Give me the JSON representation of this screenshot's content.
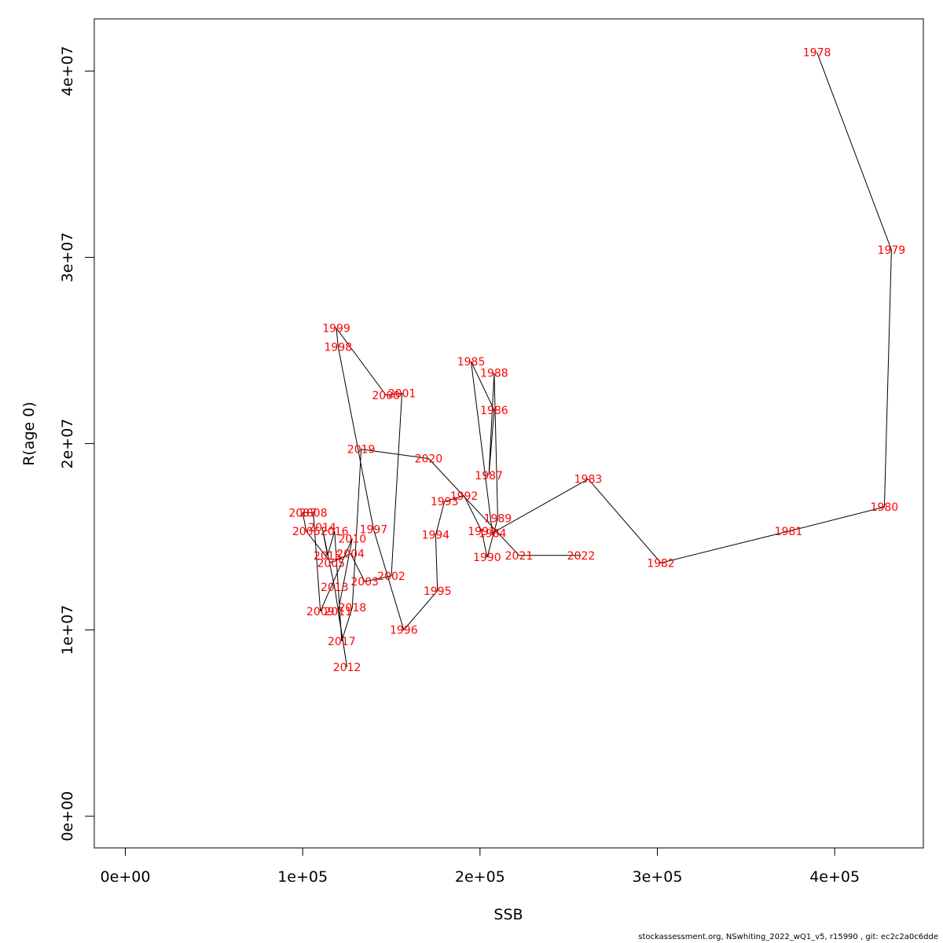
{
  "chart_data": {
    "type": "scatter",
    "connected": true,
    "title": "",
    "xlabel": "SSB",
    "ylabel": "R(age 0)",
    "xlim": [
      -17500,
      450000
    ],
    "ylim": [
      -1700000,
      42800000
    ],
    "x_ticks": [
      0,
      100000,
      200000,
      300000,
      400000
    ],
    "x_tick_labels": [
      "0e+00",
      "1e+05",
      "2e+05",
      "3e+05",
      "4e+05"
    ],
    "y_ticks": [
      0,
      10000000,
      20000000,
      30000000,
      40000000
    ],
    "y_tick_labels": [
      "0e+00",
      "1e+07",
      "2e+07",
      "3e+07",
      "4e+07"
    ],
    "grid": false,
    "line_color": "#000000",
    "label_color": "#ff0000",
    "points": [
      {
        "year": "1978",
        "ssb": 390000,
        "r": 41000000
      },
      {
        "year": "1979",
        "ssb": 432000,
        "r": 30400000
      },
      {
        "year": "1980",
        "ssb": 428000,
        "r": 16600000
      },
      {
        "year": "1981",
        "ssb": 374000,
        "r": 15300000
      },
      {
        "year": "1982",
        "ssb": 302000,
        "r": 13600000
      },
      {
        "year": "1983",
        "ssb": 261000,
        "r": 18100000
      },
      {
        "year": "1984",
        "ssb": 207000,
        "r": 15200000
      },
      {
        "year": "1985",
        "ssb": 195000,
        "r": 24400000
      },
      {
        "year": "1986",
        "ssb": 208000,
        "r": 21800000
      },
      {
        "year": "1987",
        "ssb": 205000,
        "r": 18300000
      },
      {
        "year": "1988",
        "ssb": 208000,
        "r": 23800000
      },
      {
        "year": "1989",
        "ssb": 210000,
        "r": 16000000
      },
      {
        "year": "1990",
        "ssb": 204000,
        "r": 13900000
      },
      {
        "year": "1991",
        "ssb": 201000,
        "r": 15300000
      },
      {
        "year": "1992",
        "ssb": 191000,
        "r": 17200000
      },
      {
        "year": "1993",
        "ssb": 180000,
        "r": 16900000
      },
      {
        "year": "1994",
        "ssb": 175000,
        "r": 15100000
      },
      {
        "year": "1995",
        "ssb": 176000,
        "r": 12100000
      },
      {
        "year": "1996",
        "ssb": 157000,
        "r": 10000000
      },
      {
        "year": "1997",
        "ssb": 140000,
        "r": 15400000
      },
      {
        "year": "1998",
        "ssb": 120000,
        "r": 25200000
      },
      {
        "year": "1999",
        "ssb": 119000,
        "r": 26200000
      },
      {
        "year": "2000",
        "ssb": 147000,
        "r": 22600000
      },
      {
        "year": "2001",
        "ssb": 156000,
        "r": 22700000
      },
      {
        "year": "2002",
        "ssb": 150000,
        "r": 12900000
      },
      {
        "year": "2003",
        "ssb": 135000,
        "r": 12600000
      },
      {
        "year": "2004",
        "ssb": 127000,
        "r": 14100000
      },
      {
        "year": "2005",
        "ssb": 116000,
        "r": 13600000
      },
      {
        "year": "2006",
        "ssb": 102000,
        "r": 15300000
      },
      {
        "year": "2007",
        "ssb": 100000,
        "r": 16300000
      },
      {
        "year": "2008",
        "ssb": 106000,
        "r": 16300000
      },
      {
        "year": "2009",
        "ssb": 110000,
        "r": 11000000
      },
      {
        "year": "2010",
        "ssb": 128000,
        "r": 14900000
      },
      {
        "year": "2011",
        "ssb": 120000,
        "r": 11000000
      },
      {
        "year": "2012",
        "ssb": 125000,
        "r": 8000000
      },
      {
        "year": "2013",
        "ssb": 118000,
        "r": 12300000
      },
      {
        "year": "2014",
        "ssb": 111000,
        "r": 15500000
      },
      {
        "year": "2015",
        "ssb": 114000,
        "r": 14000000
      },
      {
        "year": "2016",
        "ssb": 118000,
        "r": 15300000
      },
      {
        "year": "2017",
        "ssb": 122000,
        "r": 9400000
      },
      {
        "year": "2018",
        "ssb": 128000,
        "r": 11200000
      },
      {
        "year": "2019",
        "ssb": 133000,
        "r": 19700000
      },
      {
        "year": "2020",
        "ssb": 171000,
        "r": 19200000
      },
      {
        "year": "2021",
        "ssb": 222000,
        "r": 14000000
      },
      {
        "year": "2022",
        "ssb": 257000,
        "r": 14000000
      }
    ]
  },
  "footer": {
    "credit": "stockassessment.org, NSwhiting_2022_wQ1_v5, r15990 , git: ec2c2a0c6dde"
  }
}
